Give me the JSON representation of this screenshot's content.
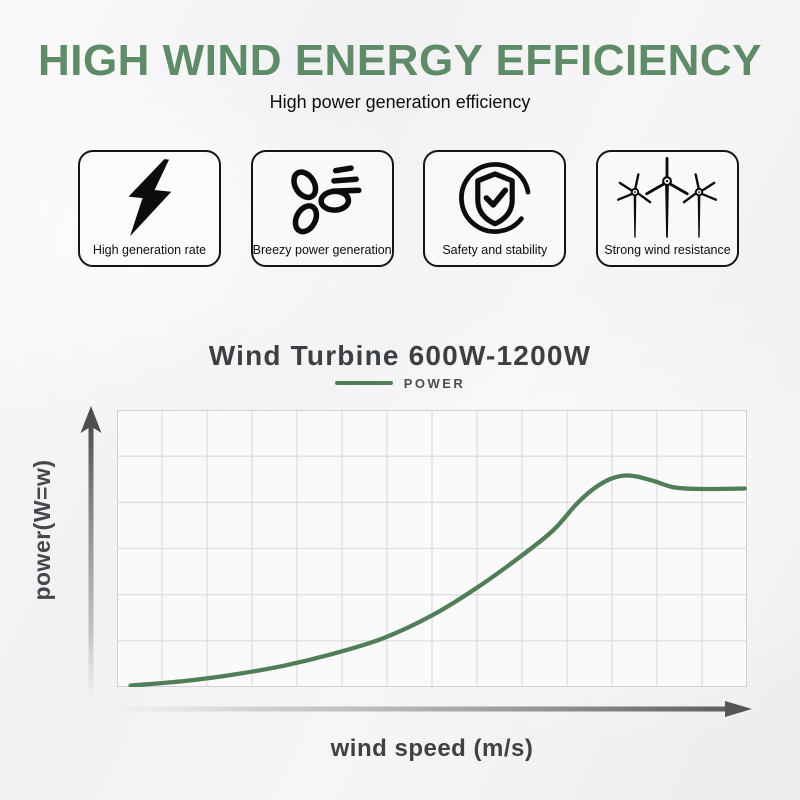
{
  "page": {
    "title": "HIGH WIND ENERGY EFFICIENCY",
    "subtitle": "High power generation efficiency"
  },
  "features": [
    {
      "icon": "lightning-icon",
      "label": "High generation rate"
    },
    {
      "icon": "fan-icon",
      "label": "Breezy power generation"
    },
    {
      "icon": "shield-check-icon",
      "label": "Safety and stability"
    },
    {
      "icon": "wind-turbines-icon",
      "label": "Strong wind resistance"
    }
  ],
  "chart": {
    "title": "Wind Turbine 600W-1200W",
    "legend_label": "POWER"
  },
  "chart_data": {
    "type": "line",
    "title": "Wind Turbine 600W-1200W",
    "xlabel": "wind speed (m/s)",
    "ylabel": "power(W=w)",
    "legend": [
      "POWER"
    ],
    "legend_position": "top-center",
    "grid": {
      "cols": 14,
      "rows": 6,
      "visible": true
    },
    "axis_tick_labels_visible": false,
    "x_range_grid_units": [
      0,
      14
    ],
    "y_range_grid_units": [
      0,
      6
    ],
    "series": [
      {
        "name": "POWER",
        "color": "#517e59",
        "points_grid_units": [
          [
            0.3,
            0.03
          ],
          [
            1.5,
            0.13
          ],
          [
            2.6,
            0.27
          ],
          [
            3.7,
            0.46
          ],
          [
            4.8,
            0.72
          ],
          [
            5.9,
            1.05
          ],
          [
            7.0,
            1.55
          ],
          [
            8.0,
            2.15
          ],
          [
            9.0,
            2.85
          ],
          [
            9.7,
            3.4
          ],
          [
            10.2,
            3.95
          ],
          [
            10.6,
            4.3
          ],
          [
            11.0,
            4.52
          ],
          [
            11.4,
            4.58
          ],
          [
            11.9,
            4.47
          ],
          [
            12.35,
            4.33
          ],
          [
            12.9,
            4.29
          ],
          [
            13.95,
            4.3
          ]
        ],
        "shape_note": "rises slowly, steep climb, peaks near 81% of x-range, slight dip then plateau"
      }
    ]
  },
  "colors": {
    "heading_green": "#5f8b69",
    "curve_green": "#517e59",
    "grid_line": "#dadada",
    "grid_border": "#c5c5c5",
    "axis_arrow_gray": "#565656",
    "title_gray": "#3d4043",
    "card_border_black": "#151515"
  }
}
